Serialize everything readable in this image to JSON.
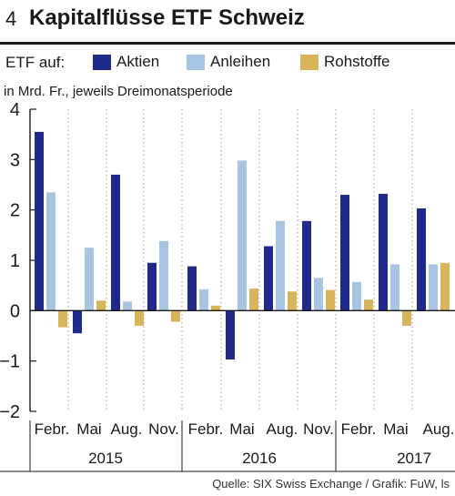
{
  "header": {
    "fig_num": "4",
    "title": "Kapitalflüsse ETF Schweiz"
  },
  "legend": {
    "label": "ETF auf:",
    "items": [
      {
        "name": "Aktien",
        "color": "#1f2a8c"
      },
      {
        "name": "Anleihen",
        "color": "#a8c4e3"
      },
      {
        "name": "Rohstoffe",
        "color": "#d9b55a"
      }
    ]
  },
  "unit_label": "in Mrd. Fr., jeweils Dreimonatsperiode",
  "source": "Quelle: SIX Swiss Exchange / Grafik: FuW, ls",
  "chart_data": {
    "type": "bar",
    "categories": [
      "Febr.",
      "Mai",
      "Aug.",
      "Nov.",
      "Febr.",
      "Mai",
      "Aug.",
      "Nov.",
      "Febr.",
      "Mai",
      "Aug."
    ],
    "years": [
      "2015",
      "2016",
      "2017"
    ],
    "series": [
      {
        "name": "Aktien",
        "values": [
          3.55,
          -0.45,
          2.7,
          0.95,
          0.88,
          -0.97,
          1.28,
          1.78,
          2.3,
          2.32,
          2.03
        ]
      },
      {
        "name": "Anleihen",
        "values": [
          2.35,
          1.25,
          0.18,
          1.38,
          0.42,
          2.98,
          1.78,
          0.65,
          0.57,
          0.92,
          0.92
        ]
      },
      {
        "name": "Rohstoffe",
        "values": [
          -0.33,
          0.2,
          -0.3,
          -0.22,
          0.1,
          0.44,
          0.38,
          0.41,
          0.22,
          -0.3,
          0.95
        ]
      }
    ],
    "yticks": [
      "4",
      "3",
      "2",
      "1",
      "0",
      "−1",
      "−2"
    ],
    "ytick_values": [
      4,
      3,
      2,
      1,
      0,
      -1,
      -2
    ],
    "ylim": [
      -2,
      4
    ],
    "grid": "vertical dashed"
  }
}
